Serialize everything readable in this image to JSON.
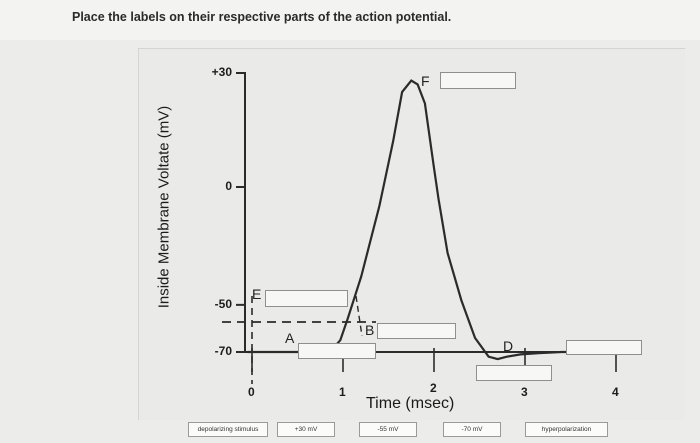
{
  "prompt": "Place the labels on their respective parts of the action potential.",
  "chart_data": {
    "type": "line",
    "title": "",
    "xlabel": "Time (msec)",
    "ylabel": "Inside Membrane Voltate (mV)",
    "x_ticks": [
      "0",
      "1",
      "2",
      "3",
      "4"
    ],
    "y_ticks": [
      "+30",
      "0",
      "-50",
      "-70"
    ],
    "xlim": [
      -0.5,
      4
    ],
    "ylim": [
      -76,
      36
    ],
    "threshold_mv": -50,
    "series": [
      {
        "x": [
          -0.05,
          0.45,
          0.8,
          0.9,
          0.97,
          1.05,
          1.2,
          1.4,
          1.55,
          1.65,
          1.75,
          1.82,
          1.9,
          2.0,
          2.05,
          2.15,
          2.3,
          2.45,
          2.6,
          2.7,
          2.8,
          2.95,
          3.15,
          3.4,
          3.7,
          4.0
        ],
        "y": [
          -70,
          -70,
          -70,
          -68,
          -65,
          -56,
          -38,
          -8,
          12,
          25,
          28,
          27,
          22,
          5,
          -5,
          -28,
          -48,
          -64,
          -72,
          -73,
          -72,
          -71,
          -70.5,
          -70,
          -70,
          -70
        ]
      }
    ],
    "region_letters": [
      "A",
      "B",
      "D",
      "E",
      "F"
    ],
    "color": "#2b2b2b"
  },
  "answer_labels": [
    "depolarizing stimulus",
    "+30 mV",
    "-55 mV",
    "-70 mV",
    "hyperpolarization"
  ]
}
